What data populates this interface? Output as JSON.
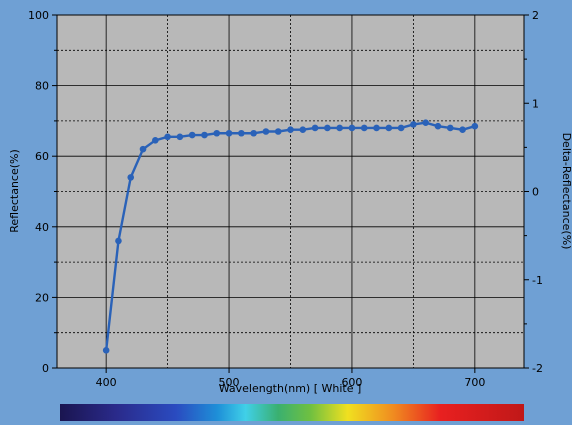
{
  "chart_data": {
    "type": "line",
    "xlabel": "Wavelength(nm)  [ White ]",
    "ylabel": "Reflectance(%)",
    "y2label": "Delta-Reflectance(%)",
    "xlim": [
      360,
      740
    ],
    "ylim": [
      0,
      100
    ],
    "y2lim": [
      -2,
      2
    ],
    "xticks": [
      400,
      500,
      600,
      700
    ],
    "yticks": [
      0,
      20,
      40,
      60,
      80,
      100
    ],
    "y2ticks": [
      -2,
      -1,
      0,
      1,
      2
    ],
    "grid": true,
    "series": [
      {
        "x": [
          400,
          410,
          420,
          430,
          440,
          450,
          460,
          470,
          480,
          490,
          500,
          510,
          520,
          530,
          540,
          550,
          560,
          570,
          580,
          590,
          600,
          610,
          620,
          630,
          640,
          650,
          660,
          670,
          680,
          690,
          700
        ],
        "y": [
          5,
          36,
          54,
          62,
          64.5,
          65.5,
          65.5,
          66,
          66,
          66.5,
          66.5,
          66.5,
          66.5,
          67,
          67,
          67.5,
          67.5,
          68,
          68,
          68,
          68,
          68,
          68,
          68,
          68,
          69,
          69.5,
          68.5,
          68,
          67.5,
          68.5
        ],
        "color": "#2a62b8"
      }
    ],
    "colorbar": true
  }
}
